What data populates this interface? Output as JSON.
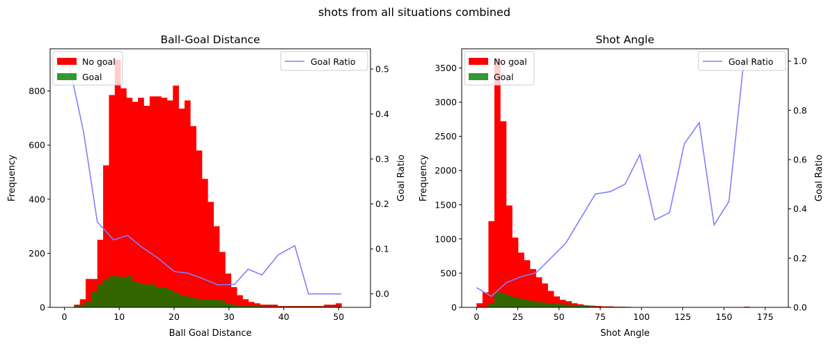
{
  "figure": {
    "suptitle": "shots from all situations combined"
  },
  "colors": {
    "no_goal": "#ff0000",
    "goal": "#008000",
    "goal_ratio": "#7f7fff",
    "overlap": "#336600"
  },
  "chart_data": [
    {
      "type": "bar",
      "title": "Ball-Goal Distance",
      "xlabel": "Ball Goal Distance",
      "ylabel": "Frequency",
      "y2label": "Goal Ratio",
      "xlim": [
        -2.6,
        55.8
      ],
      "ylim": [
        0,
        956
      ],
      "y2lim": [
        -0.03,
        0.545
      ],
      "xticks": [
        0,
        10,
        20,
        30,
        40,
        50
      ],
      "yticks": [
        0,
        200,
        400,
        600,
        800
      ],
      "y2ticks": [
        0.0,
        0.1,
        0.2,
        0.3,
        0.4,
        0.5
      ],
      "y2tick_labels": [
        "0.0",
        "0.1",
        "0.2",
        "0.3",
        "0.4",
        "0.5"
      ],
      "bin_start": 0.7,
      "bin_width": 1.06,
      "legend_left": {
        "position": "upper-left",
        "entries": [
          "No goal",
          "Goal"
        ]
      },
      "legend_right": {
        "position": "upper-right",
        "entries": [
          "Goal Ratio"
        ]
      },
      "series": [
        {
          "name": "No goal",
          "type": "histogram",
          "values": [
            0,
            10,
            30,
            105,
            105,
            250,
            525,
            785,
            915,
            810,
            775,
            760,
            775,
            745,
            780,
            780,
            775,
            765,
            820,
            735,
            765,
            670,
            580,
            475,
            390,
            300,
            205,
            125,
            75,
            45,
            30,
            20,
            15,
            10,
            10,
            10,
            5,
            5,
            5,
            5,
            5,
            5,
            5,
            5,
            10,
            10,
            15
          ]
        },
        {
          "name": "Goal",
          "type": "histogram",
          "values": [
            0,
            5,
            10,
            20,
            60,
            85,
            105,
            115,
            115,
            110,
            115,
            95,
            90,
            85,
            85,
            75,
            75,
            65,
            55,
            45,
            40,
            35,
            30,
            30,
            30,
            30,
            25,
            15,
            10,
            5,
            5,
            5,
            5,
            3,
            3,
            3,
            3,
            3,
            3,
            3,
            3,
            3,
            3,
            3,
            3,
            3,
            3
          ]
        },
        {
          "name": "Goal Ratio",
          "type": "line",
          "x": [
            0.5,
            3.5,
            6.0,
            9.0,
            11.5,
            14.0,
            17.0,
            20.0,
            22.5,
            25.0,
            28.0,
            31.0,
            33.5,
            36.0,
            39.0,
            42.0,
            44.5,
            50.5
          ],
          "y": [
            0.53,
            0.36,
            0.16,
            0.12,
            0.13,
            0.105,
            0.08,
            0.05,
            0.046,
            0.035,
            0.02,
            0.021,
            0.055,
            0.042,
            0.087,
            0.107,
            0.0,
            0.0
          ]
        }
      ]
    },
    {
      "type": "bar",
      "title": "Shot Angle",
      "xlabel": "Shot Angle",
      "ylabel": "Frequency",
      "y2label": "Goal Ratio",
      "xlim": [
        -9,
        189
      ],
      "ylim": [
        0,
        3780
      ],
      "y2lim": [
        0,
        1.05
      ],
      "xticks": [
        0,
        25,
        50,
        75,
        100,
        125,
        150,
        175
      ],
      "yticks": [
        0,
        500,
        1000,
        1500,
        2000,
        2500,
        3000,
        3500
      ],
      "y2ticks": [
        0.0,
        0.2,
        0.4,
        0.6,
        0.8,
        1.0
      ],
      "y2tick_labels": [
        "0.0",
        "0.2",
        "0.4",
        "0.6",
        "0.8",
        "1.0"
      ],
      "bin_start": 0,
      "bin_width": 3.6,
      "legend_left": {
        "position": "upper-left",
        "entries": [
          "No goal",
          "Goal"
        ]
      },
      "legend_right": {
        "position": "upper-right",
        "entries": [
          "Goal Ratio"
        ]
      },
      "series": [
        {
          "name": "No goal",
          "type": "histogram",
          "values": [
            60,
            220,
            1260,
            3640,
            2720,
            1490,
            1020,
            800,
            690,
            560,
            440,
            350,
            240,
            160,
            110,
            90,
            60,
            45,
            30,
            25,
            20,
            15,
            15,
            10,
            10,
            8,
            5,
            5,
            5,
            5,
            5,
            5,
            5,
            5,
            5,
            5,
            5,
            5,
            5,
            5,
            5,
            5,
            5,
            5,
            5,
            10,
            5,
            5,
            5,
            5
          ]
        },
        {
          "name": "Goal",
          "type": "histogram",
          "values": [
            5,
            10,
            55,
            220,
            210,
            170,
            150,
            130,
            110,
            95,
            80,
            70,
            60,
            50,
            45,
            40,
            30,
            25,
            20,
            15,
            10,
            10,
            8,
            5,
            10,
            5,
            5,
            5,
            5,
            3,
            3,
            3,
            3,
            3,
            3,
            3,
            3,
            3,
            3,
            3,
            3,
            3,
            3,
            3,
            3,
            3,
            3,
            3,
            3,
            3
          ]
        },
        {
          "name": "Goal Ratio",
          "type": "line",
          "x": [
            0,
            9,
            18,
            27,
            36,
            45,
            54,
            63,
            72,
            81,
            90,
            99,
            108,
            117,
            126,
            135,
            144,
            153,
            162,
            171
          ],
          "y": [
            0.08,
            0.045,
            0.1,
            0.125,
            0.14,
            0.2,
            0.26,
            0.36,
            0.46,
            0.47,
            0.5,
            0.62,
            0.355,
            0.385,
            0.665,
            0.75,
            0.335,
            0.43,
            1.0,
            1.0
          ]
        }
      ]
    }
  ]
}
